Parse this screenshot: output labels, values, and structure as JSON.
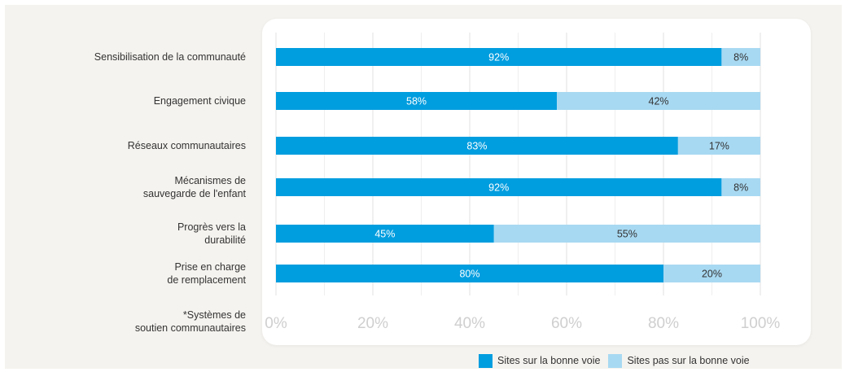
{
  "chart_data": {
    "type": "bar",
    "orientation": "horizontal",
    "stacked": true,
    "categories": [
      "Sensibilisation de la communauté",
      "Engagement civique",
      "Réseaux communautaires",
      "Mécanismes de\nsauvegarde de l'enfant",
      "Progrès vers la\ndurabilité",
      "Prise en charge\nde remplacement",
      "*Systèmes de\nsoutien communautaires"
    ],
    "series": [
      {
        "name": "Sites sur la bonne voie",
        "values": [
          92,
          58,
          83,
          92,
          45,
          80,
          null
        ],
        "labels": [
          "92%",
          "58%",
          "83%",
          "92%",
          "45%",
          "80%",
          ""
        ],
        "color": "#009ddf"
      },
      {
        "name": "Sites pas sur la bonne voie",
        "values": [
          8,
          42,
          17,
          8,
          55,
          20,
          null
        ],
        "labels": [
          "8%",
          "42%",
          "17%",
          "8%",
          "55%",
          "20%",
          ""
        ],
        "color": "#a8d9f2"
      }
    ],
    "xlim": [
      0,
      100
    ],
    "xticks": [
      "0%",
      "20%",
      "40%",
      "60%",
      "80%",
      "100%"
    ],
    "grid": true,
    "legend_position": "bottom-right"
  }
}
